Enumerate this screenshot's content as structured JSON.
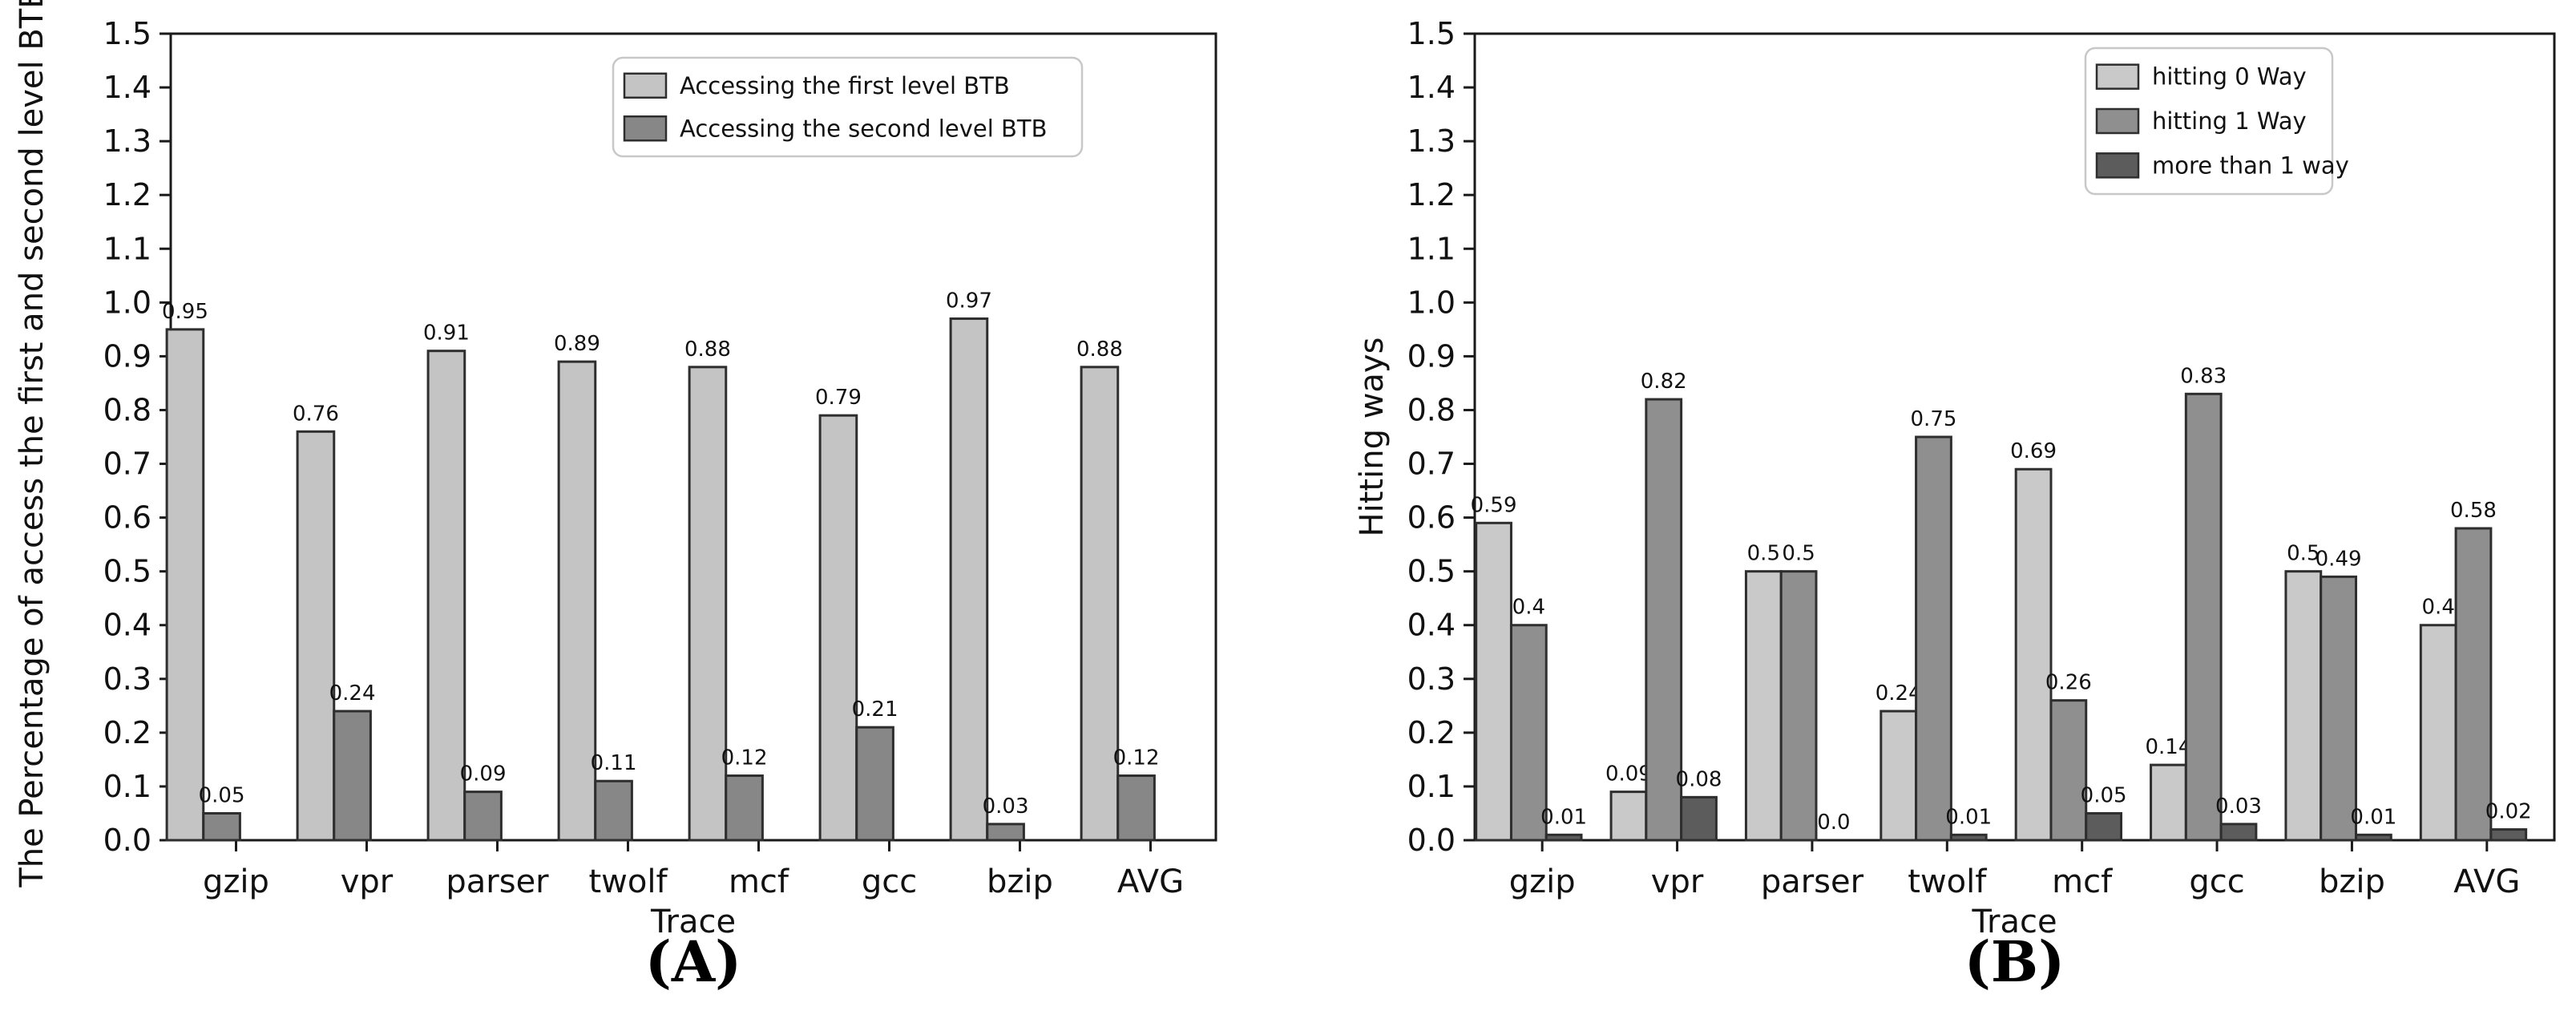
{
  "page": {
    "background": "#ffffff",
    "axis_color": "#1a1a1a"
  },
  "chart_data": [
    {
      "id": "A",
      "caption": "(A)",
      "type": "bar",
      "title": "",
      "xlabel": "Trace",
      "ylabel": "The Percentage of access the first and second level BTB",
      "categories": [
        "gzip",
        "vpr",
        "parser",
        "twolf",
        "mcf",
        "gcc",
        "bzip",
        "AVG"
      ],
      "ylim": [
        0,
        1.5
      ],
      "ytick_step": 0.1,
      "grid": false,
      "legend_position": "upper right inside",
      "bar_edge_color": "#2e2e2e",
      "series": [
        {
          "name": "Accessing the first level BTB",
          "color": "#c4c4c4",
          "values": [
            0.95,
            0.76,
            0.91,
            0.89,
            0.88,
            0.79,
            0.97,
            0.88
          ],
          "labels": [
            "0.95",
            "0.76",
            "0.91",
            "0.89",
            "0.88",
            "0.79",
            "0.97",
            "0.88"
          ]
        },
        {
          "name": "Accessing the second level BTB",
          "color": "#878787",
          "values": [
            0.05,
            0.24,
            0.09,
            0.11,
            0.12,
            0.21,
            0.03,
            0.12
          ],
          "labels": [
            "0.05",
            "0.24",
            "0.09",
            "0.11",
            "0.12",
            "0.21",
            "0.03",
            "0.12"
          ]
        }
      ]
    },
    {
      "id": "B",
      "caption": "(B)",
      "type": "bar",
      "title": "",
      "xlabel": "Trace",
      "ylabel": "Hitting ways",
      "categories": [
        "gzip",
        "vpr",
        "parser",
        "twolf",
        "mcf",
        "gcc",
        "bzip",
        "AVG"
      ],
      "ylim": [
        0,
        1.5
      ],
      "ytick_step": 0.1,
      "grid": false,
      "legend_position": "upper right inside",
      "bar_edge_color": "#2e2e2e",
      "series": [
        {
          "name": "hitting 0 Way",
          "color": "#c9c9c9",
          "values": [
            0.59,
            0.09,
            0.5,
            0.24,
            0.69,
            0.14,
            0.5,
            0.4
          ],
          "labels": [
            "0.59",
            "0.09",
            "0.5",
            "0.24",
            "0.69",
            "0.14",
            "0.5",
            "0.4"
          ]
        },
        {
          "name": "hitting 1 Way",
          "color": "#8f8f8f",
          "values": [
            0.4,
            0.82,
            0.5,
            0.75,
            0.26,
            0.83,
            0.49,
            0.58
          ],
          "labels": [
            "0.4",
            "0.82",
            "0.5",
            "0.75",
            "0.26",
            "0.83",
            "0.49",
            "0.58"
          ]
        },
        {
          "name": "more than 1 way",
          "color": "#5c5c5c",
          "values": [
            0.01,
            0.08,
            0.0,
            0.01,
            0.05,
            0.03,
            0.01,
            0.02
          ],
          "labels": [
            "0.01",
            "0.08",
            "0.0",
            "0.01",
            "0.05",
            "0.03",
            "0.01",
            "0.02"
          ]
        }
      ]
    }
  ]
}
